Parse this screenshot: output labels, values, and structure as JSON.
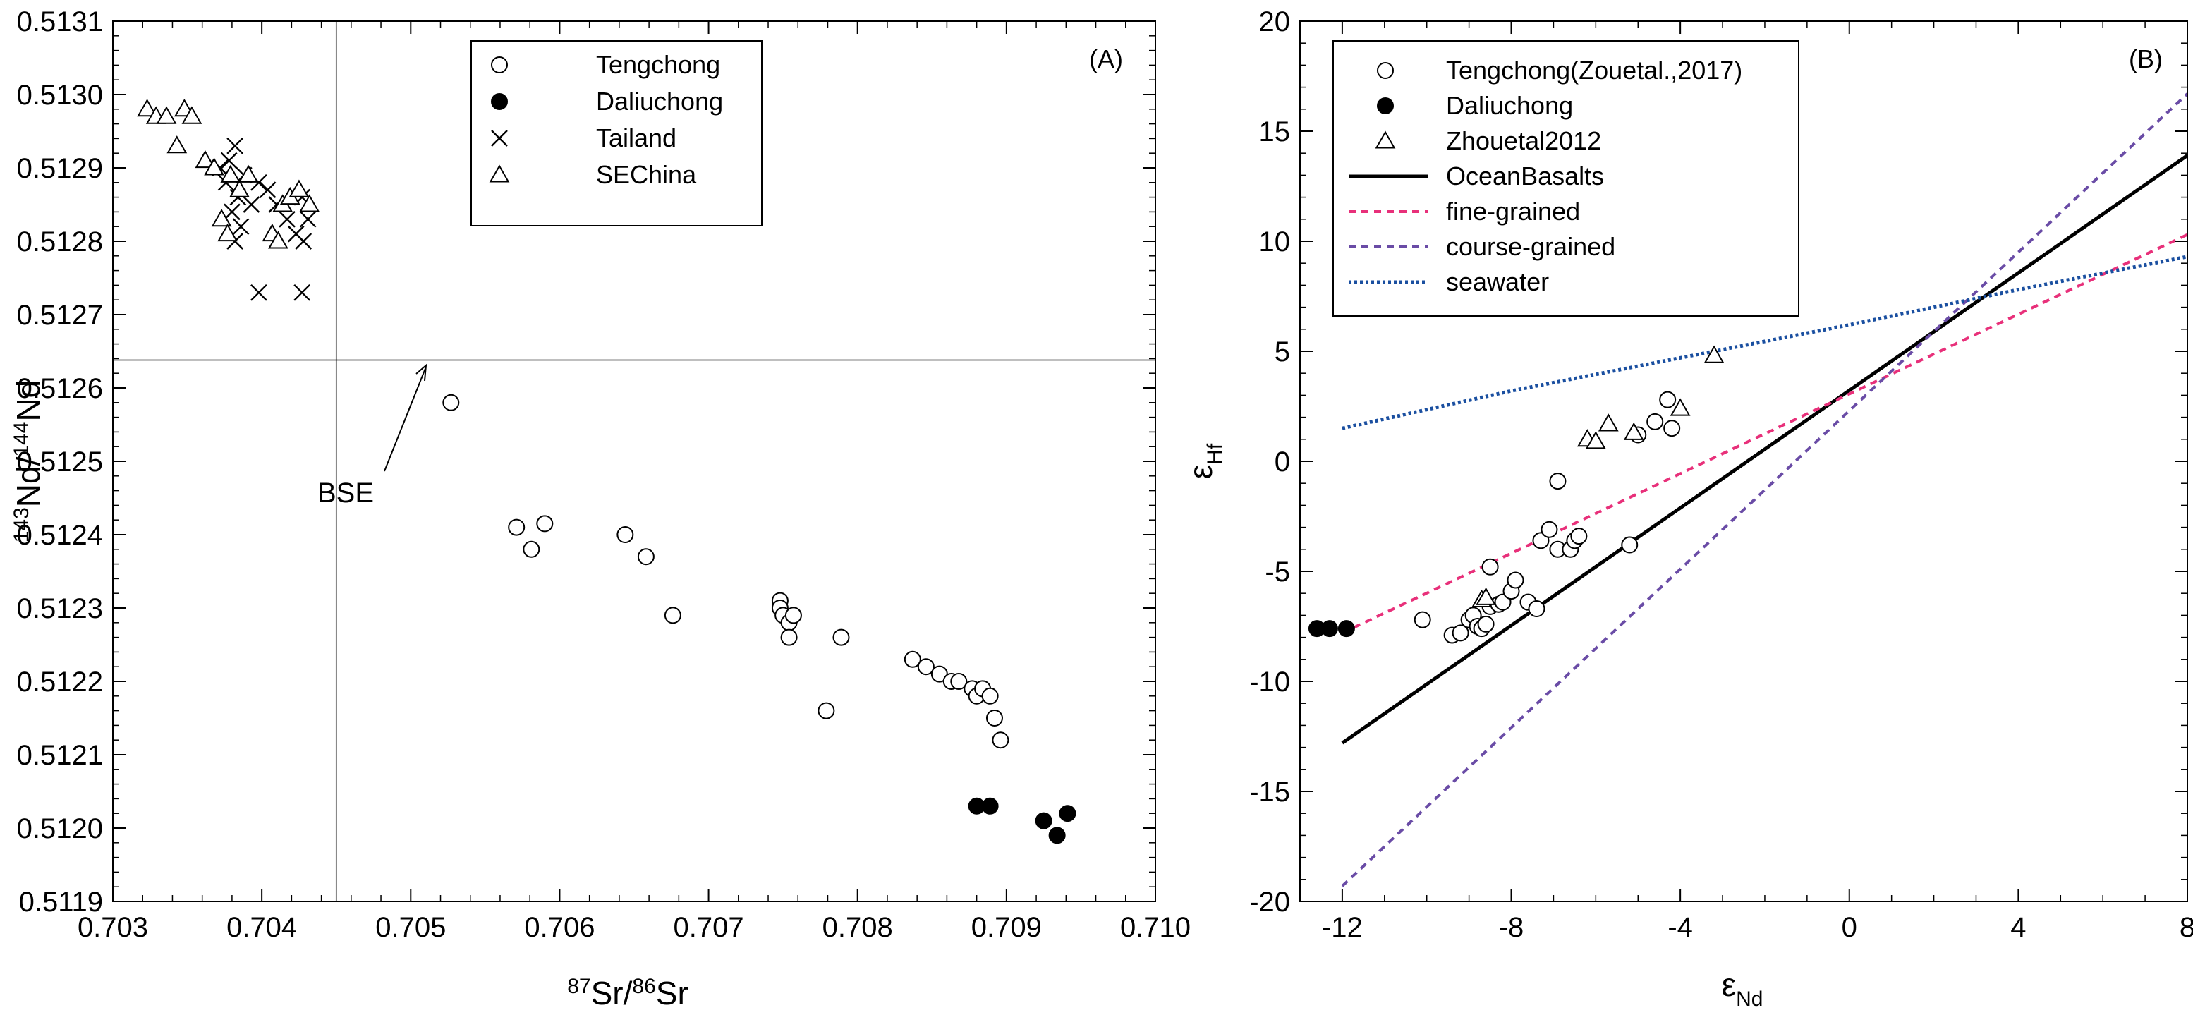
{
  "chart_data": [
    {
      "type": "scatter",
      "panel_label": "(A)",
      "xlabel": "87Sr/86Sr",
      "xlabel_parts": {
        "sup1": "87",
        "base1": "Sr/",
        "sup2": "86",
        "base2": "Sr"
      },
      "ylabel": "143Nd/144Nd",
      "ylabel_parts": {
        "sup1": "143",
        "base1": "Nd/",
        "sup2": "144",
        "base2": "Nd"
      },
      "xlim": [
        0.703,
        0.71
      ],
      "ylim": [
        0.5119,
        0.5131
      ],
      "xticks": [
        "0.703",
        "0.704",
        "0.705",
        "0.706",
        "0.707",
        "0.708",
        "0.709",
        "0.710"
      ],
      "yticks": [
        "0.5119",
        "0.5120",
        "0.5121",
        "0.5122",
        "0.5123",
        "0.5124",
        "0.5125",
        "0.5126",
        "0.5127",
        "0.5128",
        "0.5129",
        "0.5130",
        "0.5131"
      ],
      "reference_lines": {
        "x": 0.7045,
        "y": 0.512638
      },
      "annotation": {
        "text": "BSE",
        "x": 0.7045,
        "y": 0.512638
      },
      "legend": [
        "Tengchong",
        "Daliuchong",
        "Tailand",
        "SEChina"
      ],
      "series": [
        {
          "name": "Tengchong",
          "marker": "open-circle",
          "points": [
            [
              0.70527,
              0.51258
            ],
            [
              0.70571,
              0.51241
            ],
            [
              0.70581,
              0.51238
            ],
            [
              0.7059,
              0.512415
            ],
            [
              0.70644,
              0.5124
            ],
            [
              0.70658,
              0.51237
            ],
            [
              0.70676,
              0.51229
            ],
            [
              0.70748,
              0.51231
            ],
            [
              0.70748,
              0.5123
            ],
            [
              0.7075,
              0.51229
            ],
            [
              0.70754,
              0.51228
            ],
            [
              0.70757,
              0.51229
            ],
            [
              0.70754,
              0.51226
            ],
            [
              0.70789,
              0.51226
            ],
            [
              0.70779,
              0.51216
            ],
            [
              0.70837,
              0.51223
            ],
            [
              0.70846,
              0.51222
            ],
            [
              0.70855,
              0.51221
            ],
            [
              0.70863,
              0.5122
            ],
            [
              0.70868,
              0.5122
            ],
            [
              0.70877,
              0.51219
            ],
            [
              0.7088,
              0.51218
            ],
            [
              0.70884,
              0.51219
            ],
            [
              0.70889,
              0.51218
            ],
            [
              0.70892,
              0.51215
            ],
            [
              0.70896,
              0.51212
            ]
          ]
        },
        {
          "name": "Daliuchong",
          "marker": "filled-circle",
          "points": [
            [
              0.7088,
              0.51203
            ],
            [
              0.70889,
              0.51203
            ],
            [
              0.70925,
              0.51201
            ],
            [
              0.70934,
              0.51199
            ],
            [
              0.70941,
              0.51202
            ]
          ]
        },
        {
          "name": "Tailand",
          "marker": "x",
          "points": [
            [
              0.70372,
              0.5129
            ],
            [
              0.70378,
              0.51291
            ],
            [
              0.70382,
              0.51293
            ],
            [
              0.70376,
              0.51288
            ],
            [
              0.70384,
              0.51286
            ],
            [
              0.70388,
              0.51289
            ],
            [
              0.70393,
              0.51285
            ],
            [
              0.7038,
              0.51284
            ],
            [
              0.70386,
              0.51282
            ],
            [
              0.70398,
              0.51288
            ],
            [
              0.70404,
              0.51287
            ],
            [
              0.7041,
              0.51285
            ],
            [
              0.70417,
              0.51283
            ],
            [
              0.70423,
              0.51281
            ],
            [
              0.70427,
              0.51286
            ],
            [
              0.70431,
              0.51283
            ],
            [
              0.70428,
              0.5128
            ],
            [
              0.70382,
              0.5128
            ],
            [
              0.70398,
              0.51273
            ],
            [
              0.70427,
              0.51273
            ]
          ]
        },
        {
          "name": "SEChina",
          "marker": "open-triangle",
          "points": [
            [
              0.70323,
              0.51298
            ],
            [
              0.70329,
              0.51297
            ],
            [
              0.70336,
              0.51297
            ],
            [
              0.70348,
              0.51298
            ],
            [
              0.70353,
              0.51297
            ],
            [
              0.70343,
              0.51293
            ],
            [
              0.70362,
              0.51291
            ],
            [
              0.70368,
              0.5129
            ],
            [
              0.70379,
              0.51289
            ],
            [
              0.70385,
              0.51287
            ],
            [
              0.70391,
              0.51289
            ],
            [
              0.70373,
              0.51283
            ],
            [
              0.70377,
              0.51281
            ],
            [
              0.70407,
              0.51281
            ],
            [
              0.70411,
              0.5128
            ],
            [
              0.70414,
              0.51285
            ],
            [
              0.70419,
              0.51286
            ],
            [
              0.70425,
              0.51287
            ],
            [
              0.70432,
              0.51285
            ]
          ]
        }
      ]
    },
    {
      "type": "scatter",
      "panel_label": "(B)",
      "xlabel": "εNd",
      "xlabel_parts": {
        "base": "ε",
        "sub": "Nd"
      },
      "ylabel": "εHf",
      "ylabel_parts": {
        "base": "ε",
        "sub": "Hf"
      },
      "xlim": [
        -13,
        8
      ],
      "ylim": [
        -20,
        20
      ],
      "xticks": [
        "-12",
        "-8",
        "-4",
        "0",
        "4",
        "8"
      ],
      "yticks": [
        "-20",
        "-15",
        "-10",
        "-5",
        "0",
        "5",
        "10",
        "15",
        "20"
      ],
      "legend": [
        "Tengchong(Zouetal.,2017)",
        "Daliuchong",
        "Zhouetal2012",
        "OceanBasalts",
        "fine-grained",
        "course-grained",
        "seawater"
      ],
      "lines": [
        {
          "name": "OceanBasalts",
          "color": "#000000",
          "style": "solid",
          "x": [
            -12,
            8
          ],
          "y": [
            -12.8,
            13.9
          ]
        },
        {
          "name": "fine-grained",
          "color": "#e8307a",
          "style": "dashed",
          "x": [
            -12,
            8
          ],
          "y": [
            -7.8,
            10.3
          ]
        },
        {
          "name": "course-grained",
          "color": "#6a4ca6",
          "style": "dashed",
          "x": [
            -12,
            8
          ],
          "y": [
            -19.3,
            16.7
          ]
        },
        {
          "name": "seawater",
          "color": "#1a4fa0",
          "style": "dotted",
          "x": [
            -12,
            -8,
            -4,
            0,
            4,
            8
          ],
          "y": [
            1.5,
            3.2,
            4.7,
            6.2,
            7.8,
            9.3
          ]
        }
      ],
      "series": [
        {
          "name": "Tengchong(Zouetal.,2017)",
          "marker": "open-circle",
          "points": [
            [
              -10.1,
              -7.2
            ],
            [
              -9.4,
              -7.9
            ],
            [
              -9.2,
              -7.8
            ],
            [
              -9.0,
              -7.2
            ],
            [
              -8.9,
              -7.0
            ],
            [
              -8.8,
              -7.5
            ],
            [
              -8.7,
              -7.6
            ],
            [
              -8.6,
              -7.4
            ],
            [
              -8.5,
              -6.6
            ],
            [
              -8.5,
              -4.8
            ],
            [
              -8.3,
              -6.5
            ],
            [
              -8.2,
              -6.4
            ],
            [
              -8.0,
              -5.9
            ],
            [
              -7.9,
              -5.4
            ],
            [
              -7.6,
              -6.4
            ],
            [
              -7.4,
              -6.7
            ],
            [
              -7.3,
              -3.6
            ],
            [
              -7.1,
              -3.1
            ],
            [
              -6.9,
              -4.0
            ],
            [
              -6.6,
              -4.0
            ],
            [
              -6.5,
              -3.6
            ],
            [
              -6.4,
              -3.4
            ],
            [
              -6.9,
              -0.9
            ],
            [
              -5.2,
              -3.8
            ],
            [
              -5.0,
              1.2
            ],
            [
              -4.6,
              1.8
            ],
            [
              -4.3,
              2.8
            ],
            [
              -4.2,
              1.5
            ]
          ]
        },
        {
          "name": "Daliuchong",
          "marker": "filled-circle",
          "points": [
            [
              -12.6,
              -7.6
            ],
            [
              -12.3,
              -7.6
            ],
            [
              -11.9,
              -7.6
            ]
          ]
        },
        {
          "name": "Zhouetal2012",
          "marker": "open-triangle",
          "points": [
            [
              -8.7,
              -6.3
            ],
            [
              -8.6,
              -6.2
            ],
            [
              -6.2,
              1.0
            ],
            [
              -6.0,
              0.9
            ],
            [
              -5.7,
              1.7
            ],
            [
              -5.1,
              1.3
            ],
            [
              -4.0,
              2.4
            ],
            [
              -3.2,
              4.8
            ]
          ]
        }
      ]
    }
  ]
}
